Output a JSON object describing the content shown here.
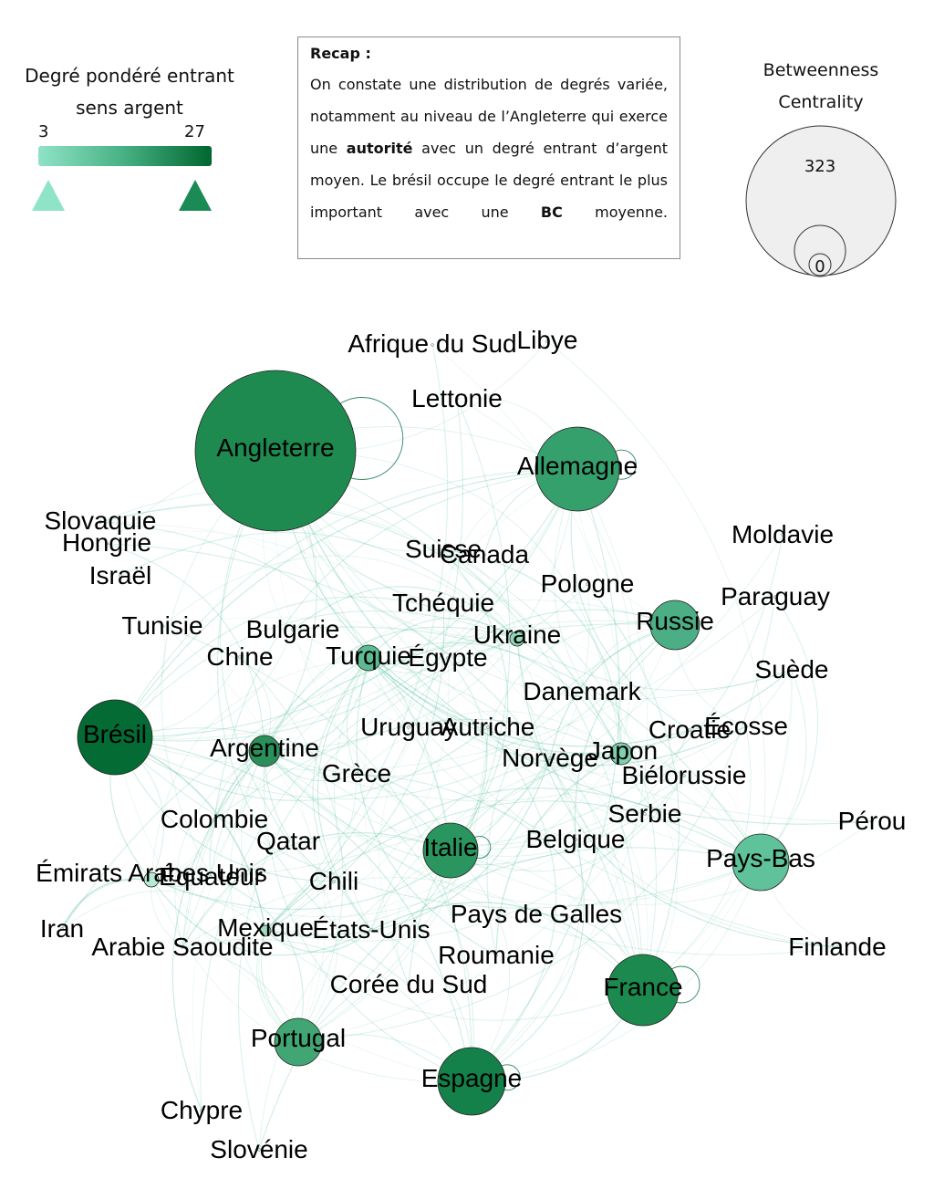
{
  "legend_degree": {
    "title": "Degré pondéré entrant sens argent",
    "min": "3",
    "max": "27",
    "color_min": "#8fe3c6",
    "color_max": "#00662f"
  },
  "recap": {
    "title": "Recap :",
    "p1": "On constate une distribution de degrés variée, notamment au niveau de l’Angleterre qui exerce une ",
    "b1": "autorité",
    "p2": " avec un degré entrant d’argent moyen. Le brésil occupe le degré entrant le plus important avec une ",
    "b2": "BC",
    "p3": " moyenne."
  },
  "legend_bc": {
    "title": "Betweenness Centrality",
    "max": "323",
    "min": "0"
  },
  "nodes": [
    {
      "label": "Angleterre",
      "color": "#1e8a50"
    },
    {
      "label": "Allemagne",
      "color": "#36a06d"
    },
    {
      "label": "Brésil",
      "color": "#036b33"
    },
    {
      "label": "Russie",
      "color": "#4cae84"
    },
    {
      "label": "Pays-Bas",
      "color": "#5fc29a"
    },
    {
      "label": "France",
      "color": "#1c8a4e"
    },
    {
      "label": "Espagne",
      "color": "#14814a"
    },
    {
      "label": "Italie",
      "color": "#2b955f"
    },
    {
      "label": "Portugal",
      "color": "#42a574"
    },
    {
      "label": "Argentine",
      "color": "#2a8f5a"
    },
    {
      "label": "Turquie",
      "color": "#5dbb92"
    },
    {
      "label": "Japon",
      "color": "#7fd0ae"
    },
    {
      "label": "Ukraine",
      "color": "#8fd8b8"
    },
    {
      "label": "Émirats Arabes Unis",
      "color": "#b7ead4"
    },
    {
      "label": "Mexique",
      "color": "#9fdcc1"
    },
    {
      "label": "Afrique du Sud",
      "color": "#c8efdd"
    },
    {
      "label": "Libye",
      "color": "#c8efdd"
    },
    {
      "label": "Lettonie",
      "color": "#c8efdd"
    },
    {
      "label": "Slovaquie",
      "color": "#c8efdd"
    },
    {
      "label": "Hongrie",
      "color": "#c8efdd"
    },
    {
      "label": "Israël",
      "color": "#c8efdd"
    },
    {
      "label": "Tunisie",
      "color": "#c8efdd"
    },
    {
      "label": "Chine",
      "color": "#c8efdd"
    },
    {
      "label": "Bulgarie",
      "color": "#c8efdd"
    },
    {
      "label": "Suisse",
      "color": "#c8efdd"
    },
    {
      "label": "Canada",
      "color": "#c8efdd"
    },
    {
      "label": "Tchéquie",
      "color": "#c8efdd"
    },
    {
      "label": "Pologne",
      "color": "#c8efdd"
    },
    {
      "label": "Moldavie",
      "color": "#c8efdd"
    },
    {
      "label": "Paraguay",
      "color": "#c8efdd"
    },
    {
      "label": "Suède",
      "color": "#c8efdd"
    },
    {
      "label": "Égypte",
      "color": "#c8efdd"
    },
    {
      "label": "Danemark",
      "color": "#c8efdd"
    },
    {
      "label": "Uruguay",
      "color": "#c8efdd"
    },
    {
      "label": "Autriche",
      "color": "#c8efdd"
    },
    {
      "label": "Croatie",
      "color": "#c8efdd"
    },
    {
      "label": "Écosse",
      "color": "#c8efdd"
    },
    {
      "label": "Norvège",
      "color": "#c8efdd"
    },
    {
      "label": "Biélorussie",
      "color": "#c8efdd"
    },
    {
      "label": "Grèce",
      "color": "#c8efdd"
    },
    {
      "label": "Colombie",
      "color": "#c8efdd"
    },
    {
      "label": "Serbie",
      "color": "#c8efdd"
    },
    {
      "label": "Pérou",
      "color": "#c8efdd"
    },
    {
      "label": "Qatar",
      "color": "#c8efdd"
    },
    {
      "label": "Belgique",
      "color": "#c8efdd"
    },
    {
      "label": "Équateur",
      "color": "#c8efdd"
    },
    {
      "label": "Chili",
      "color": "#c8efdd"
    },
    {
      "label": "Iran",
      "color": "#c8efdd"
    },
    {
      "label": "Arabie Saoudite",
      "color": "#c8efdd"
    },
    {
      "label": "États-Unis",
      "color": "#c8efdd"
    },
    {
      "label": "Pays de Galles",
      "color": "#c8efdd"
    },
    {
      "label": "Finlande",
      "color": "#c8efdd"
    },
    {
      "label": "Roumanie",
      "color": "#c8efdd"
    },
    {
      "label": "Corée du Sud",
      "color": "#c8efdd"
    },
    {
      "label": "Chypre",
      "color": "#c8efdd"
    },
    {
      "label": "Slovénie",
      "color": "#c8efdd"
    }
  ],
  "edge_color": "#4fbf95"
}
